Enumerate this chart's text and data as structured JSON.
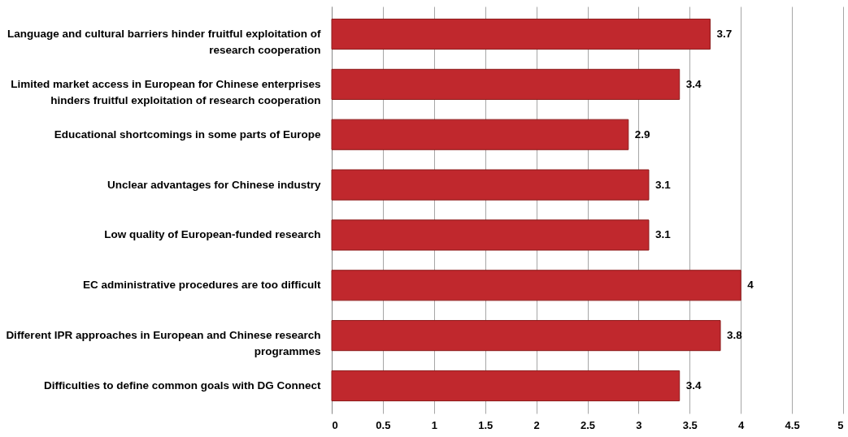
{
  "chart_data": {
    "type": "bar",
    "orientation": "horizontal",
    "categories": [
      "Language and cultural barriers hinder fruitful exploitation of research cooperation",
      "Limited market access in European for Chinese enterprises hinders fruitful exploitation of research cooperation",
      "Educational shortcomings in some parts of Europe",
      "Unclear advantages for Chinese industry",
      "Low quality of European-funded research",
      "EC administrative procedures are too difficult",
      "Different IPR approaches in European and Chinese research programmes",
      "Difficulties to define common goals with DG Connect"
    ],
    "values": [
      3.7,
      3.4,
      2.9,
      3.1,
      3.1,
      4,
      3.8,
      3.4
    ],
    "color": "#c0282d",
    "xlim": [
      0,
      5
    ],
    "xticks": [
      0,
      0.5,
      1,
      1.5,
      2,
      2.5,
      3,
      3.5,
      4,
      4.5,
      5
    ],
    "grid": "x",
    "data_labels": true
  }
}
